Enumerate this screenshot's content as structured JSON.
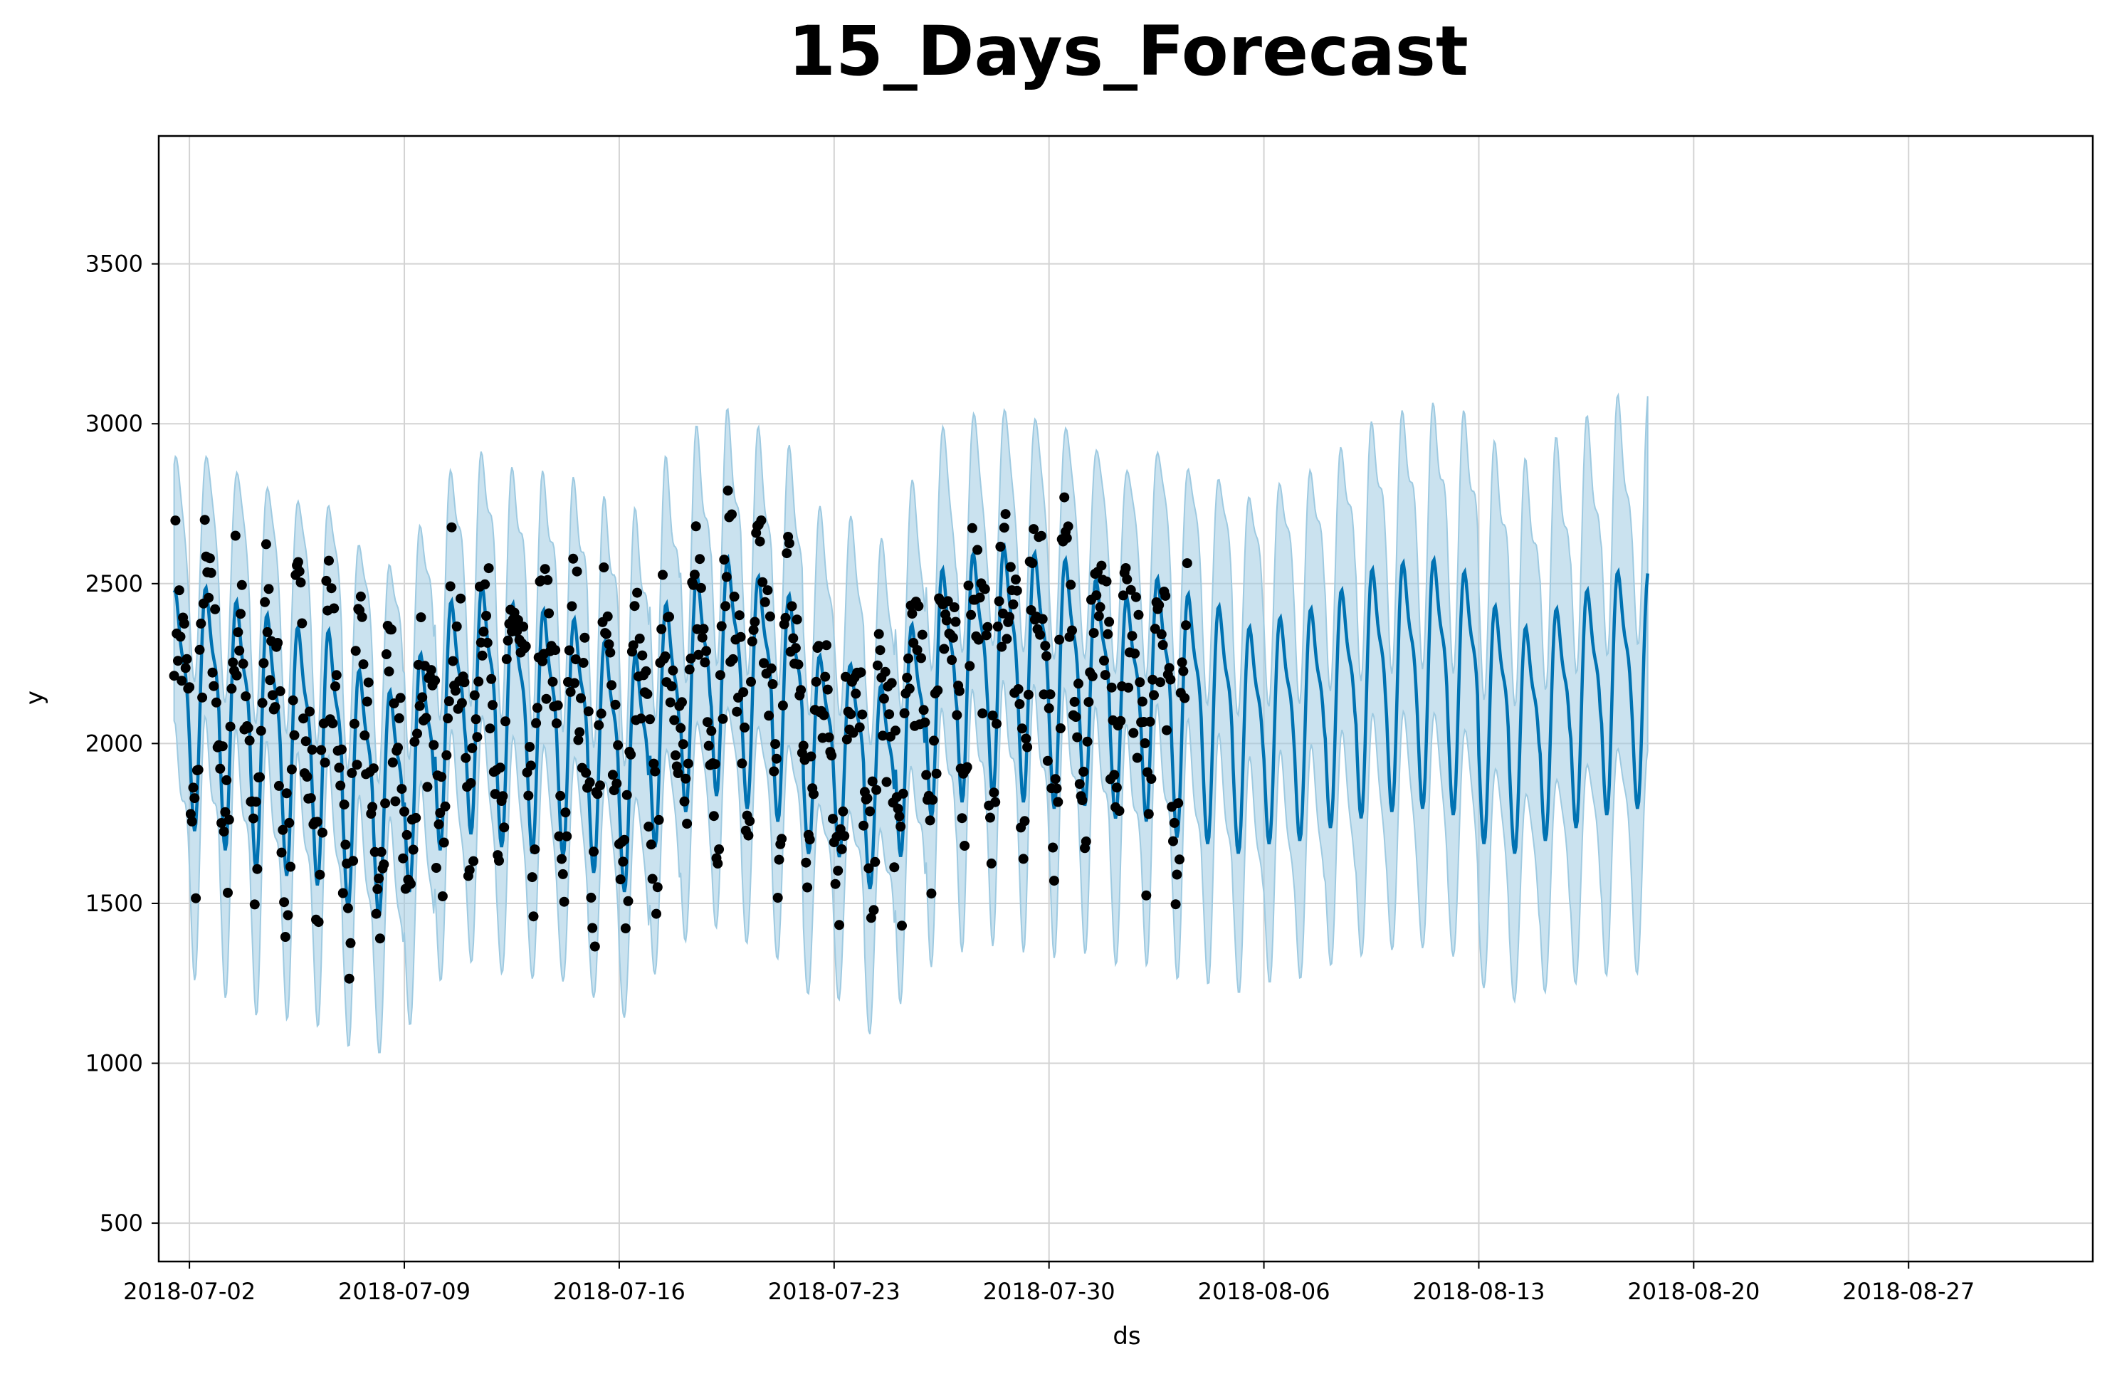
{
  "chart_data": {
    "type": "line",
    "title": "15_Days_Forecast",
    "xlabel": "ds",
    "ylabel": "y",
    "x_start": "2018-07-01",
    "x_end": "2018-09-02",
    "ylim": [
      380,
      3900
    ],
    "x_ticks": [
      "2018-07-02",
      "2018-07-09",
      "2018-07-16",
      "2018-07-23",
      "2018-07-30",
      "2018-08-06",
      "2018-08-13",
      "2018-08-20",
      "2018-08-27"
    ],
    "y_ticks": [
      500,
      1000,
      1500,
      2000,
      2500,
      3000,
      3500
    ],
    "grid": true,
    "history_end": "2018-08-03",
    "forecast_end": "2018-08-18",
    "colors": {
      "forecast_line": "#0072B2",
      "interval_fill": "#9ecae1",
      "observed_points": "#000000"
    },
    "series": [
      {
        "kind": "forecast",
        "description": "hourly seasonality, daily peak ~2500-2650",
        "daily_mean": [
          2150,
          2150,
          2100,
          2050,
          2020,
          2000,
          1900,
          1850,
          1950,
          2100,
          2150,
          2100,
          2080,
          2060,
          2000,
          1950,
          2100,
          2200,
          2250,
          2200,
          2150,
          2000,
          1980,
          1900,
          2050,
          2200,
          2250,
          2270,
          2250,
          2230,
          2200,
          2150,
          2180,
          2130,
          2100,
          2050,
          2080,
          2100,
          2150,
          2200,
          2220,
          2230,
          2200,
          2100,
          2050,
          2100,
          2150,
          2200,
          2210,
          2220,
          2230
        ],
        "daily_amplitude": [
          420,
          430,
          440,
          450,
          440,
          450,
          420,
          400,
          420,
          440,
          440,
          430,
          430,
          420,
          410,
          420,
          430,
          420,
          420,
          410,
          400,
          350,
          340,
          360,
          410,
          440,
          440,
          440,
          440,
          440,
          400,
          390,
          430,
          430,
          420,
          400,
          400,
          410,
          420,
          440,
          440,
          440,
          430,
          420,
          400,
          410,
          420,
          430,
          420,
          420,
          400
        ]
      },
      {
        "kind": "observed",
        "description": "hourly actuals through 2018-08-03"
      }
    ]
  }
}
